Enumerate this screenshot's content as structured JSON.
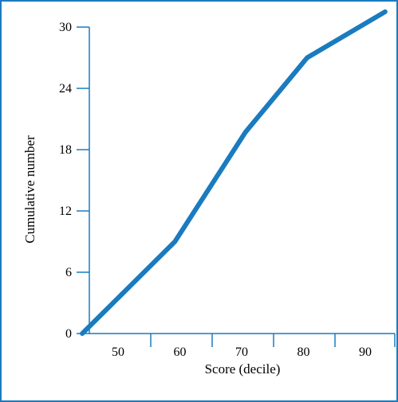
{
  "chart_data": {
    "type": "line",
    "xlabel": "Score (decile)",
    "ylabel": "Cumulative number",
    "x_ticks": [
      50,
      60,
      70,
      80,
      90
    ],
    "y_ticks": [
      0,
      6,
      12,
      18,
      24,
      30
    ],
    "xlim": [
      40,
      95
    ],
    "ylim": [
      0,
      30
    ],
    "grid": false,
    "series": [
      {
        "x": [
          44.2,
          59.2,
          70.6,
          80.6,
          93.2
        ],
        "y": [
          0,
          9,
          19.7,
          27,
          31.5
        ]
      }
    ]
  },
  "colors": {
    "line": "#1a7bbf",
    "axis": "#1a7bbf",
    "frame": "#1a7bbf"
  }
}
